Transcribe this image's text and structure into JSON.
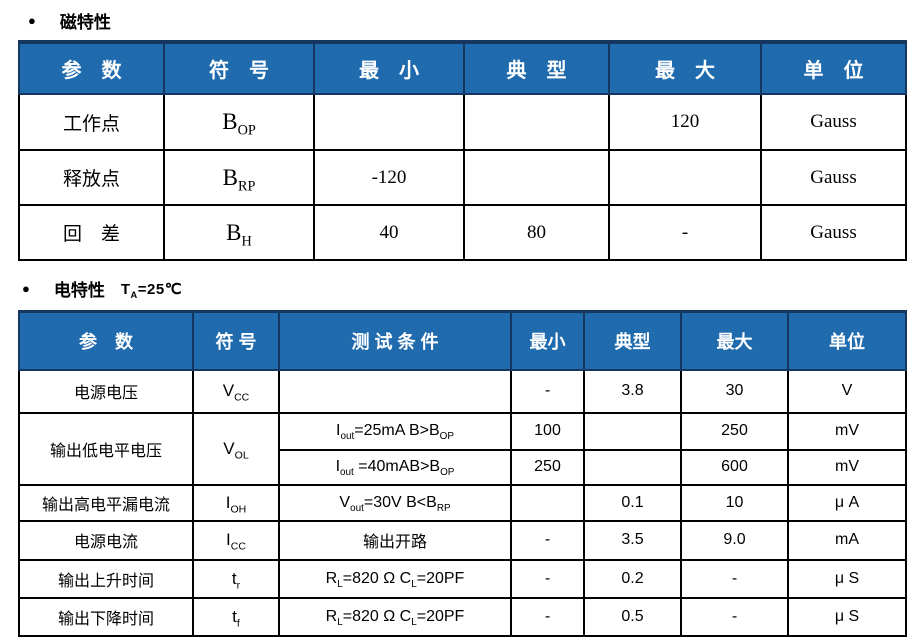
{
  "colors": {
    "header_bg": "#1F6BAD",
    "header_border": "#15365F",
    "grid": "#000000"
  },
  "sections": {
    "magnetic": {
      "bullet": "●",
      "title": "磁特性"
    },
    "electrical": {
      "bullet": "●",
      "title": "电特性",
      "condition_html": "T<sub>A</sub>=25℃"
    }
  },
  "table1": {
    "headers": [
      "参　数",
      "符　号",
      "最　小",
      "典　型",
      "最　大",
      "单　位"
    ],
    "rows": [
      {
        "param": "工作点",
        "symbol_html": "B<sub>OP</sub>",
        "min": "",
        "typ": "",
        "max": "120",
        "unit": "Gauss"
      },
      {
        "param": "释放点",
        "symbol_html": "B<sub>RP</sub>",
        "min": "-120",
        "typ": "",
        "max": "",
        "unit": "Gauss"
      },
      {
        "param": "回　差",
        "symbol_html": "B<sub>H</sub>",
        "min": "40",
        "typ": "80",
        "max": "-",
        "unit": "Gauss"
      }
    ]
  },
  "table2": {
    "headers": [
      "参　数",
      "符 号",
      "测 试 条 件",
      "最小",
      "典型",
      "最大",
      "单位"
    ],
    "rows": [
      {
        "param": "电源电压",
        "symbol_html": "V<sub>CC</sub>",
        "cond_html": "",
        "min": "-",
        "typ": "3.8",
        "max": "30",
        "unit": "V"
      },
      {
        "param": "输出低电平电压",
        "symbol_html": "V<sub>OL</sub>",
        "cond_html": "I<sub>out</sub>=25mA B&gt;B<sub>OP</sub>",
        "min": "100",
        "typ": "",
        "max": "250",
        "unit": "mV"
      },
      {
        "cond_html": "I<sub>out</sub> =40mAB&gt;B<sub>OP</sub>",
        "min": "250",
        "typ": "",
        "max": "600",
        "unit": "mV"
      },
      {
        "param": "输出高电平漏电流",
        "symbol_html": "I<sub>OH</sub>",
        "cond_html": "V<sub>out</sub>=30V B&lt;B<sub>RP</sub>",
        "min": "",
        "typ": "0.1",
        "max": "10",
        "unit": "μ A"
      },
      {
        "param": "电源电流",
        "symbol_html": "I<sub>CC</sub>",
        "cond_html": "输出开路",
        "min": "-",
        "typ": "3.5",
        "max": "9.0",
        "unit": "mA"
      },
      {
        "param": "输出上升时间",
        "symbol_html": "t<sub>r</sub>",
        "cond_html": "R<sub>L</sub>=820 Ω  C<sub>L</sub>=20PF",
        "min": "-",
        "typ": "0.2",
        "max": "-",
        "unit": "μ S"
      },
      {
        "param": "输出下降时间",
        "symbol_html": "t<sub>f</sub>",
        "cond_html": "R<sub>L</sub>=820 Ω  C<sub>L</sub>=20PF",
        "min": "-",
        "typ": "0.5",
        "max": "-",
        "unit": "μ S"
      }
    ]
  }
}
